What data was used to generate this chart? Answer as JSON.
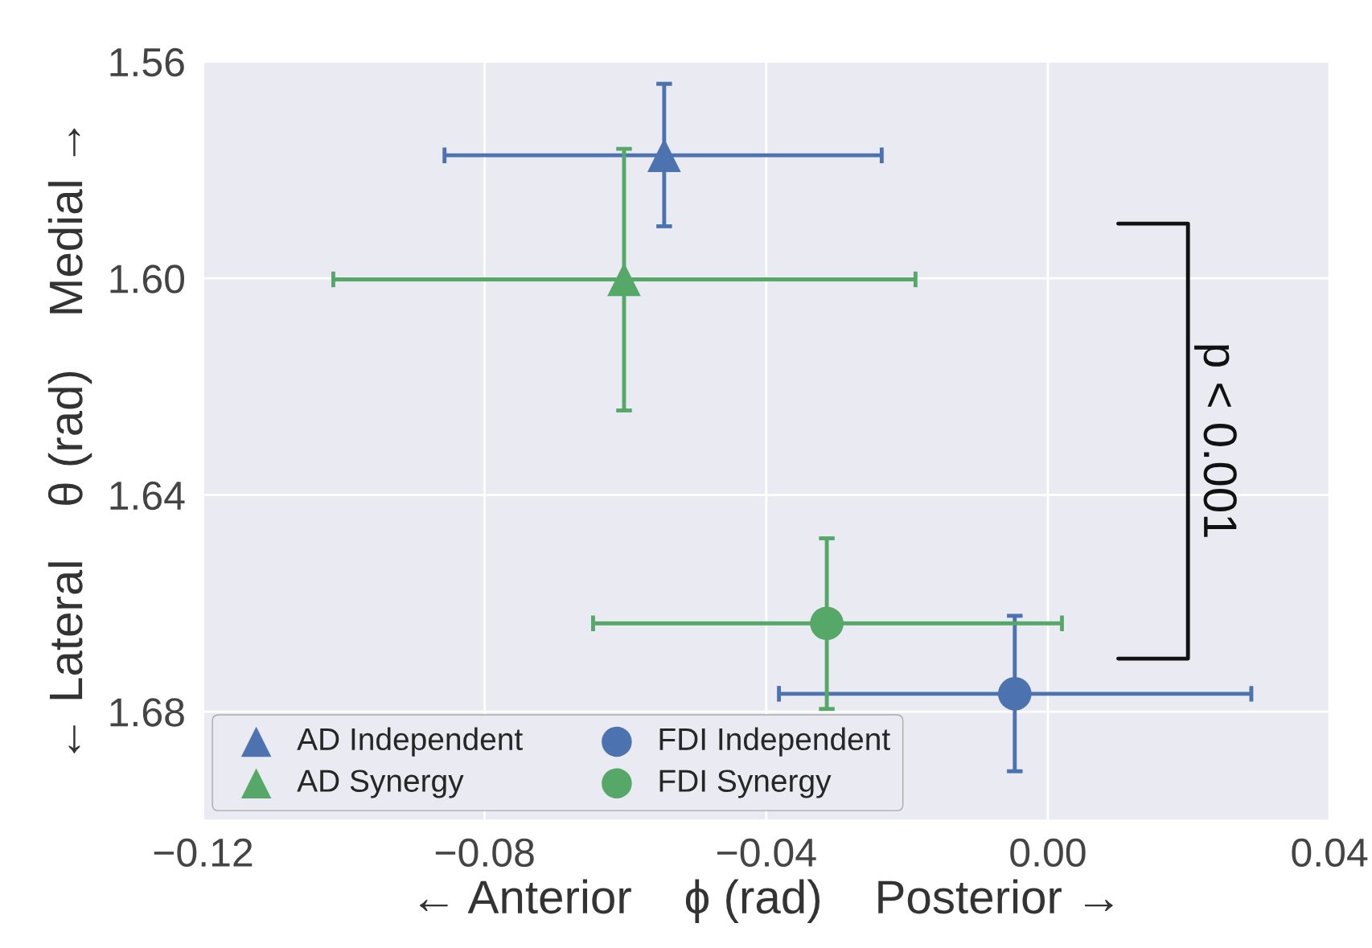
{
  "chart_data": {
    "type": "scatter",
    "xlabel": "← Anterior    ϕ (rad)    Posterior →",
    "ylabel": "← Lateral    θ (rad)    Medial →",
    "xlim": [
      -0.12,
      0.04
    ],
    "ylim": [
      1.7,
      1.56
    ],
    "xticks": [
      {
        "value": -0.12,
        "label": "−0.12"
      },
      {
        "value": -0.08,
        "label": "−0.08"
      },
      {
        "value": -0.04,
        "label": "−0.04"
      },
      {
        "value": 0,
        "label": "0.00"
      },
      {
        "value": 0.04,
        "label": "0.04"
      }
    ],
    "yticks": [
      {
        "value": 1.56,
        "label": "1.56"
      },
      {
        "value": 1.6,
        "label": "1.60"
      },
      {
        "value": 1.64,
        "label": "1.64"
      },
      {
        "value": 1.68,
        "label": "1.68"
      }
    ],
    "grid": true,
    "legend": "bottom left",
    "series": [
      {
        "name": "AD Independent",
        "color": "#4c72b0",
        "marker": "triangle",
        "x": [
          -0.0545
        ],
        "values": [
          1.5773
        ],
        "xerrors": [
          [
            -0.0857,
            -0.0236
          ]
        ],
        "errors": [
          [
            1.5641,
            1.5904
          ]
        ]
      },
      {
        "name": "AD Synergy",
        "color": "#55a868",
        "marker": "triangle",
        "x": [
          -0.0602
        ],
        "values": [
          1.6002
        ],
        "xerrors": [
          [
            -0.1015,
            -0.0188
          ]
        ],
        "errors": [
          [
            1.5761,
            1.6244
          ]
        ]
      },
      {
        "name": "FDI Independent",
        "color": "#4c72b0",
        "marker": "circle",
        "x": [
          -0.0047
        ],
        "values": [
          1.6767
        ],
        "xerrors": [
          [
            -0.0382,
            0.0289
          ]
        ],
        "errors": [
          [
            1.6623,
            1.691
          ]
        ]
      },
      {
        "name": "FDI Synergy",
        "color": "#55a868",
        "marker": "circle",
        "x": [
          -0.0314
        ],
        "values": [
          1.6637
        ],
        "xerrors": [
          [
            -0.0646,
            0.002
          ]
        ],
        "errors": [
          [
            1.648,
            1.6795
          ]
        ]
      }
    ],
    "annotations": [
      "p < 0.001"
    ]
  }
}
